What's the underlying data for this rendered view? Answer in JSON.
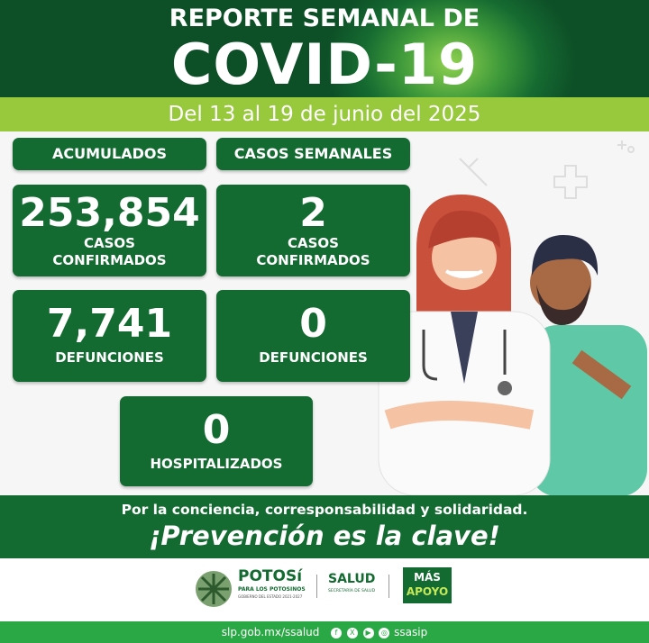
{
  "header": {
    "line1": "REPORTE SEMANAL DE",
    "line2": "COVID-19"
  },
  "date_range": "Del 13  al 19 de junio del 2025",
  "columns": {
    "cumulative": "ACUMULADOS",
    "weekly": "CASOS SEMANALES"
  },
  "stats": {
    "cumulative_cases": {
      "value": "253,854",
      "label1": "CASOS",
      "label2": "CONFIRMADOS"
    },
    "weekly_cases": {
      "value": "2",
      "label1": "CASOS",
      "label2": "CONFIRMADOS"
    },
    "cumulative_deaths": {
      "value": "7,741",
      "label": "DEFUNCIONES"
    },
    "weekly_deaths": {
      "value": "0",
      "label": "DEFUNCIONES"
    },
    "hospitalized": {
      "value": "0",
      "label": "HOSPITALIZADOS"
    }
  },
  "slogan": {
    "line1": "Por la conciencia, corresponsabilidad y solidaridad.",
    "line2": "¡Prevención es la clave!"
  },
  "logos": {
    "potosi": "POTOSí",
    "potosi_sub": "PARA LOS POTOSINOS",
    "potosi_sub2": "GOBIERNO DEL ESTADO 2021-2027",
    "salud": "SALUD",
    "salud_sub": "SECRETARÍA DE SALUD",
    "mas_apoyo1": "MÁS",
    "mas_apoyo2": "APOYO"
  },
  "footer": {
    "url": "slp.gob.mx/ssalud",
    "handle": "ssasip",
    "icons": [
      "facebook-icon",
      "x-icon",
      "youtube-icon",
      "instagram-icon"
    ]
  },
  "colors": {
    "dark_green": "#136b31",
    "lime": "#98c93c",
    "footer_green": "#2aa845"
  }
}
